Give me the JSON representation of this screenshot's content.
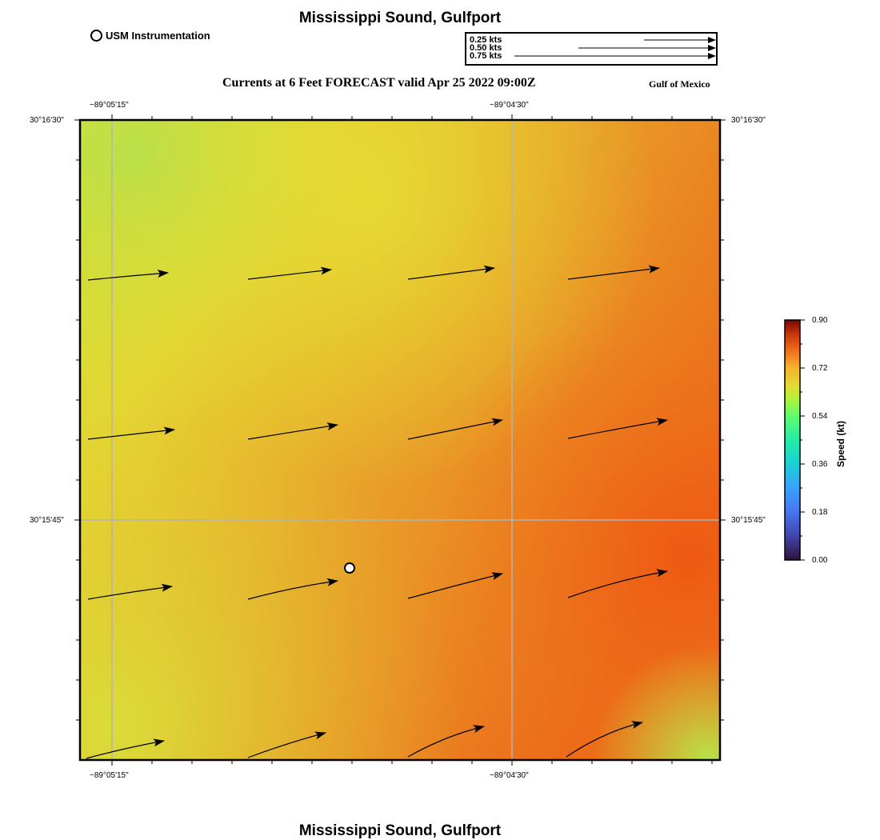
{
  "title": "Mississippi Sound, Gulfport",
  "footer_title": "Mississippi Sound, Gulfport",
  "station_legend": {
    "label": "USM Instrumentation",
    "icon": "circle-marker-icon"
  },
  "vector_scale": {
    "labels": [
      "0.25 kts",
      "0.50 kts",
      "0.75 kts"
    ]
  },
  "forecast_title": "Currents at 6 Feet FORECAST valid Apr 25 2022 09:00Z",
  "region_label": "Gulf of Mexico",
  "map": {
    "lon_ticks": [
      "−89°05'15\"",
      "−89°04'30\""
    ],
    "lat_ticks": [
      "30°16'30\"",
      "30°15'45\""
    ]
  },
  "colorbar": {
    "title": "Speed (kt)",
    "ticks": [
      "0.90",
      "0.72",
      "0.54",
      "0.36",
      "0.18",
      "0.00"
    ],
    "range": [
      0,
      0.9
    ],
    "colormap": "turbo"
  },
  "colors": {
    "speed_low_area": "#b7e04a",
    "speed_mid_area": "#e6c630",
    "speed_high_area": "#ef5e15",
    "vector": "#000000",
    "grid": "#b4b4b4"
  }
}
